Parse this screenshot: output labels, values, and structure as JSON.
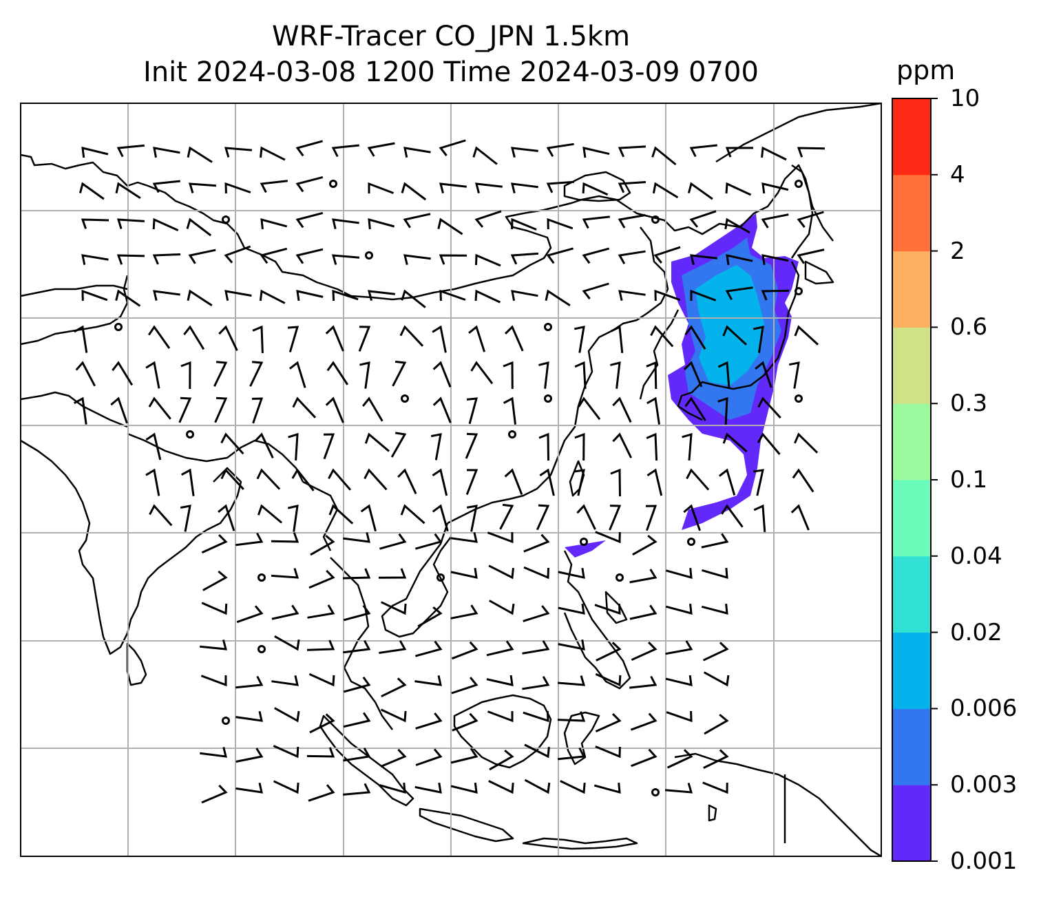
{
  "title": {
    "line1": "WRF-Tracer CO_JPN 1.5km",
    "line2": "Init 2024-03-08 1200 Time 2024-03-09 0700"
  },
  "colorbar": {
    "unit": "ppm",
    "ticks": [
      "0.001",
      "0.003",
      "0.006",
      "0.02",
      "0.04",
      "0.1",
      "0.3",
      "0.6",
      "2",
      "4",
      "10"
    ],
    "colors": [
      "#6329fb",
      "#3377f0",
      "#04b3ec",
      "#31e1d3",
      "#6bfbbb",
      "#9cfa9e",
      "#cfe285",
      "#fdb061",
      "#ff703b",
      "#fd2a16"
    ]
  },
  "map": {
    "background": "#ffffff",
    "gridline_color": "#b0b0b0",
    "coastline_color": "#000000",
    "plume_color": "#6329fb",
    "plume_inner_color": "#3377f0",
    "plume_core_color": "#04b3ec"
  }
}
